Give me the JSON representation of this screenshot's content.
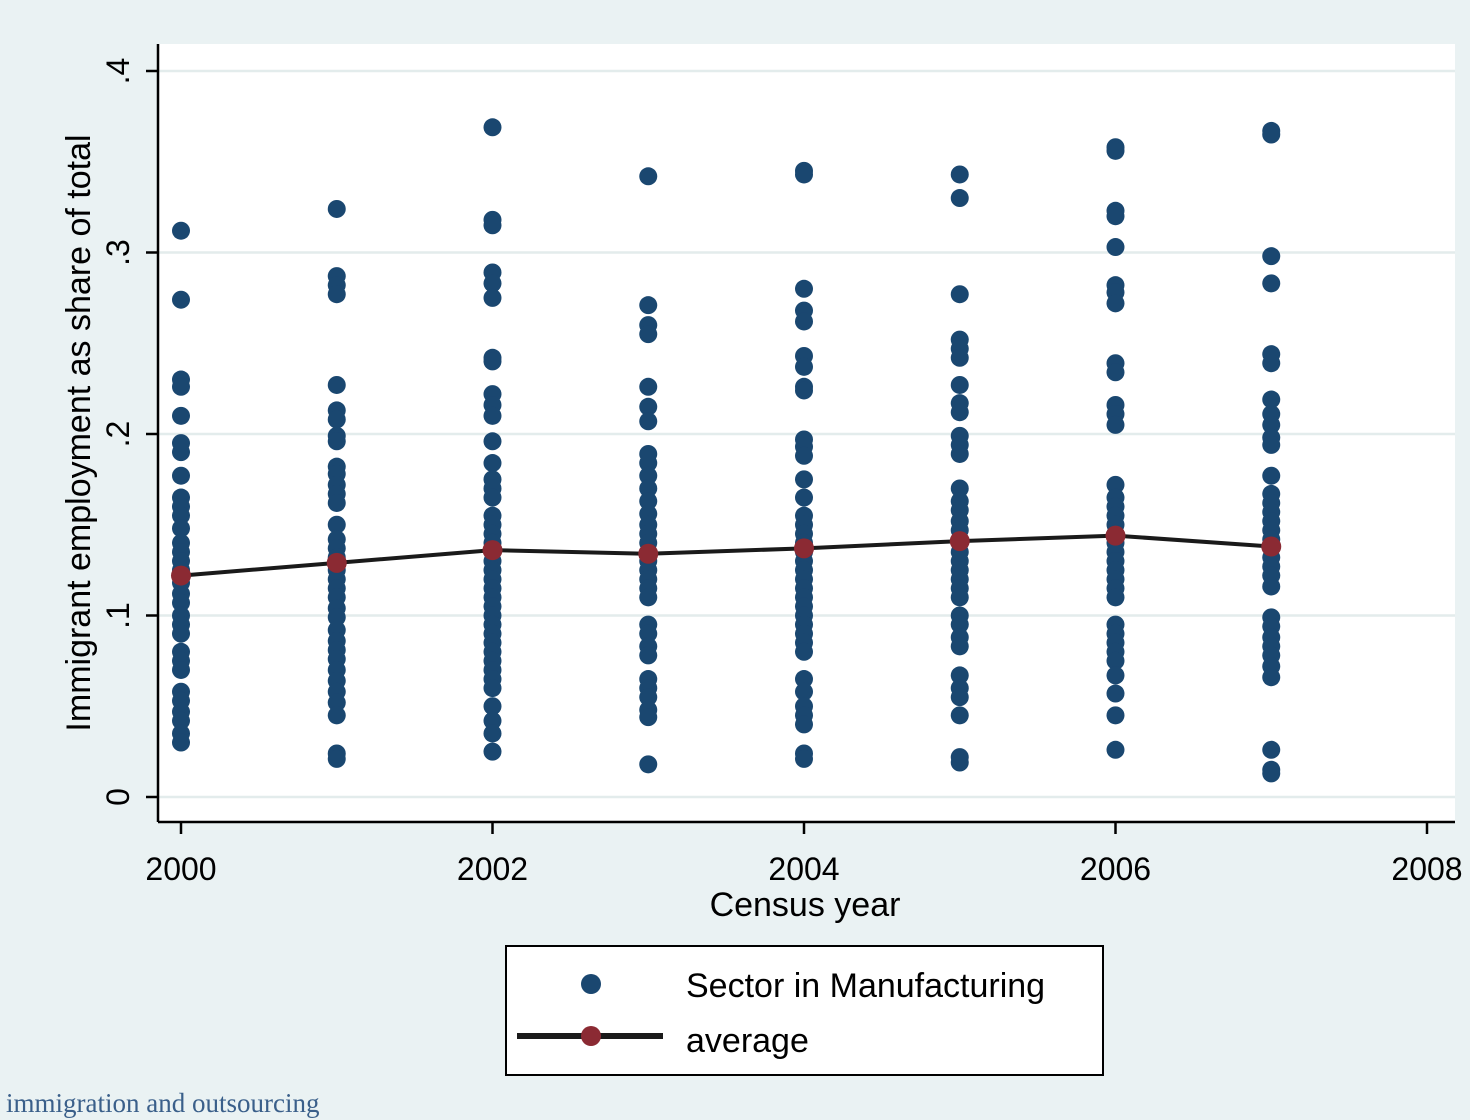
{
  "footer_text": "immigration and outsourcing",
  "colors": {
    "background": "#eaf2f3",
    "plot_background": "#ffffff",
    "grid": "#e3ecec",
    "scatter": "#1a4770",
    "average_marker": "#8b2a33",
    "average_line": "#1a1a1a"
  },
  "chart_data": {
    "type": "scatter",
    "title": "",
    "xlabel": "Census year",
    "ylabel": "Immigrant employment as share of total",
    "xlim": [
      2000,
      2008
    ],
    "ylim": [
      0,
      0.4
    ],
    "x_ticks": [
      2000,
      2002,
      2004,
      2006,
      2008
    ],
    "x_tick_labels": [
      "2000",
      "2002",
      "2004",
      "2006",
      "2008"
    ],
    "y_ticks": [
      0,
      0.1,
      0.2,
      0.3,
      0.4
    ],
    "y_tick_labels": [
      "0",
      ".1",
      ".2",
      ".3",
      ".4"
    ],
    "grid": true,
    "legend": {
      "placement": "bottom-center",
      "entries": [
        "Sector in Manufacturing",
        "average"
      ]
    },
    "series": [
      {
        "name": "Sector in Manufacturing",
        "type": "scatter",
        "points": [
          [
            2000,
            0.312
          ],
          [
            2000,
            0.274
          ],
          [
            2000,
            0.23
          ],
          [
            2000,
            0.226
          ],
          [
            2000,
            0.21
          ],
          [
            2000,
            0.195
          ],
          [
            2000,
            0.19
          ],
          [
            2000,
            0.177
          ],
          [
            2000,
            0.165
          ],
          [
            2000,
            0.16
          ],
          [
            2000,
            0.155
          ],
          [
            2000,
            0.148
          ],
          [
            2000,
            0.14
          ],
          [
            2000,
            0.135
          ],
          [
            2000,
            0.13
          ],
          [
            2000,
            0.125
          ],
          [
            2000,
            0.118
          ],
          [
            2000,
            0.112
          ],
          [
            2000,
            0.107
          ],
          [
            2000,
            0.1
          ],
          [
            2000,
            0.095
          ],
          [
            2000,
            0.09
          ],
          [
            2000,
            0.08
          ],
          [
            2000,
            0.075
          ],
          [
            2000,
            0.07
          ],
          [
            2000,
            0.058
          ],
          [
            2000,
            0.053
          ],
          [
            2000,
            0.047
          ],
          [
            2000,
            0.042
          ],
          [
            2000,
            0.035
          ],
          [
            2000,
            0.03
          ],
          [
            2001,
            0.324
          ],
          [
            2001,
            0.287
          ],
          [
            2001,
            0.282
          ],
          [
            2001,
            0.277
          ],
          [
            2001,
            0.227
          ],
          [
            2001,
            0.213
          ],
          [
            2001,
            0.208
          ],
          [
            2001,
            0.199
          ],
          [
            2001,
            0.196
          ],
          [
            2001,
            0.182
          ],
          [
            2001,
            0.178
          ],
          [
            2001,
            0.172
          ],
          [
            2001,
            0.167
          ],
          [
            2001,
            0.162
          ],
          [
            2001,
            0.15
          ],
          [
            2001,
            0.142
          ],
          [
            2001,
            0.137
          ],
          [
            2001,
            0.132
          ],
          [
            2001,
            0.125
          ],
          [
            2001,
            0.12
          ],
          [
            2001,
            0.115
          ],
          [
            2001,
            0.11
          ],
          [
            2001,
            0.104
          ],
          [
            2001,
            0.099
          ],
          [
            2001,
            0.092
          ],
          [
            2001,
            0.086
          ],
          [
            2001,
            0.081
          ],
          [
            2001,
            0.076
          ],
          [
            2001,
            0.07
          ],
          [
            2001,
            0.064
          ],
          [
            2001,
            0.058
          ],
          [
            2001,
            0.052
          ],
          [
            2001,
            0.045
          ],
          [
            2001,
            0.024
          ],
          [
            2001,
            0.021
          ],
          [
            2002,
            0.369
          ],
          [
            2002,
            0.318
          ],
          [
            2002,
            0.315
          ],
          [
            2002,
            0.289
          ],
          [
            2002,
            0.283
          ],
          [
            2002,
            0.275
          ],
          [
            2002,
            0.242
          ],
          [
            2002,
            0.24
          ],
          [
            2002,
            0.222
          ],
          [
            2002,
            0.216
          ],
          [
            2002,
            0.21
          ],
          [
            2002,
            0.196
          ],
          [
            2002,
            0.184
          ],
          [
            2002,
            0.175
          ],
          [
            2002,
            0.17
          ],
          [
            2002,
            0.165
          ],
          [
            2002,
            0.155
          ],
          [
            2002,
            0.15
          ],
          [
            2002,
            0.145
          ],
          [
            2002,
            0.14
          ],
          [
            2002,
            0.135
          ],
          [
            2002,
            0.13
          ],
          [
            2002,
            0.125
          ],
          [
            2002,
            0.12
          ],
          [
            2002,
            0.115
          ],
          [
            2002,
            0.11
          ],
          [
            2002,
            0.105
          ],
          [
            2002,
            0.1
          ],
          [
            2002,
            0.095
          ],
          [
            2002,
            0.09
          ],
          [
            2002,
            0.085
          ],
          [
            2002,
            0.08
          ],
          [
            2002,
            0.075
          ],
          [
            2002,
            0.07
          ],
          [
            2002,
            0.065
          ],
          [
            2002,
            0.06
          ],
          [
            2002,
            0.05
          ],
          [
            2002,
            0.042
          ],
          [
            2002,
            0.035
          ],
          [
            2002,
            0.025
          ],
          [
            2003,
            0.342
          ],
          [
            2003,
            0.271
          ],
          [
            2003,
            0.26
          ],
          [
            2003,
            0.255
          ],
          [
            2003,
            0.226
          ],
          [
            2003,
            0.215
          ],
          [
            2003,
            0.207
          ],
          [
            2003,
            0.189
          ],
          [
            2003,
            0.184
          ],
          [
            2003,
            0.177
          ],
          [
            2003,
            0.17
          ],
          [
            2003,
            0.163
          ],
          [
            2003,
            0.156
          ],
          [
            2003,
            0.15
          ],
          [
            2003,
            0.145
          ],
          [
            2003,
            0.14
          ],
          [
            2003,
            0.135
          ],
          [
            2003,
            0.13
          ],
          [
            2003,
            0.125
          ],
          [
            2003,
            0.12
          ],
          [
            2003,
            0.115
          ],
          [
            2003,
            0.11
          ],
          [
            2003,
            0.095
          ],
          [
            2003,
            0.09
          ],
          [
            2003,
            0.083
          ],
          [
            2003,
            0.078
          ],
          [
            2003,
            0.065
          ],
          [
            2003,
            0.06
          ],
          [
            2003,
            0.055
          ],
          [
            2003,
            0.048
          ],
          [
            2003,
            0.044
          ],
          [
            2003,
            0.018
          ],
          [
            2004,
            0.345
          ],
          [
            2004,
            0.343
          ],
          [
            2004,
            0.28
          ],
          [
            2004,
            0.268
          ],
          [
            2004,
            0.262
          ],
          [
            2004,
            0.243
          ],
          [
            2004,
            0.237
          ],
          [
            2004,
            0.226
          ],
          [
            2004,
            0.224
          ],
          [
            2004,
            0.197
          ],
          [
            2004,
            0.193
          ],
          [
            2004,
            0.188
          ],
          [
            2004,
            0.175
          ],
          [
            2004,
            0.165
          ],
          [
            2004,
            0.155
          ],
          [
            2004,
            0.15
          ],
          [
            2004,
            0.145
          ],
          [
            2004,
            0.14
          ],
          [
            2004,
            0.135
          ],
          [
            2004,
            0.13
          ],
          [
            2004,
            0.125
          ],
          [
            2004,
            0.12
          ],
          [
            2004,
            0.115
          ],
          [
            2004,
            0.11
          ],
          [
            2004,
            0.105
          ],
          [
            2004,
            0.1
          ],
          [
            2004,
            0.095
          ],
          [
            2004,
            0.09
          ],
          [
            2004,
            0.085
          ],
          [
            2004,
            0.08
          ],
          [
            2004,
            0.065
          ],
          [
            2004,
            0.058
          ],
          [
            2004,
            0.05
          ],
          [
            2004,
            0.045
          ],
          [
            2004,
            0.04
          ],
          [
            2004,
            0.024
          ],
          [
            2004,
            0.021
          ],
          [
            2005,
            0.343
          ],
          [
            2005,
            0.33
          ],
          [
            2005,
            0.277
          ],
          [
            2005,
            0.252
          ],
          [
            2005,
            0.247
          ],
          [
            2005,
            0.242
          ],
          [
            2005,
            0.227
          ],
          [
            2005,
            0.217
          ],
          [
            2005,
            0.212
          ],
          [
            2005,
            0.199
          ],
          [
            2005,
            0.194
          ],
          [
            2005,
            0.189
          ],
          [
            2005,
            0.17
          ],
          [
            2005,
            0.163
          ],
          [
            2005,
            0.158
          ],
          [
            2005,
            0.152
          ],
          [
            2005,
            0.147
          ],
          [
            2005,
            0.14
          ],
          [
            2005,
            0.135
          ],
          [
            2005,
            0.13
          ],
          [
            2005,
            0.125
          ],
          [
            2005,
            0.12
          ],
          [
            2005,
            0.115
          ],
          [
            2005,
            0.11
          ],
          [
            2005,
            0.1
          ],
          [
            2005,
            0.095
          ],
          [
            2005,
            0.088
          ],
          [
            2005,
            0.083
          ],
          [
            2005,
            0.067
          ],
          [
            2005,
            0.06
          ],
          [
            2005,
            0.055
          ],
          [
            2005,
            0.045
          ],
          [
            2005,
            0.022
          ],
          [
            2005,
            0.019
          ],
          [
            2006,
            0.358
          ],
          [
            2006,
            0.356
          ],
          [
            2006,
            0.323
          ],
          [
            2006,
            0.32
          ],
          [
            2006,
            0.303
          ],
          [
            2006,
            0.282
          ],
          [
            2006,
            0.278
          ],
          [
            2006,
            0.272
          ],
          [
            2006,
            0.239
          ],
          [
            2006,
            0.234
          ],
          [
            2006,
            0.216
          ],
          [
            2006,
            0.211
          ],
          [
            2006,
            0.205
          ],
          [
            2006,
            0.172
          ],
          [
            2006,
            0.165
          ],
          [
            2006,
            0.16
          ],
          [
            2006,
            0.155
          ],
          [
            2006,
            0.15
          ],
          [
            2006,
            0.145
          ],
          [
            2006,
            0.14
          ],
          [
            2006,
            0.135
          ],
          [
            2006,
            0.13
          ],
          [
            2006,
            0.125
          ],
          [
            2006,
            0.12
          ],
          [
            2006,
            0.115
          ],
          [
            2006,
            0.11
          ],
          [
            2006,
            0.095
          ],
          [
            2006,
            0.09
          ],
          [
            2006,
            0.085
          ],
          [
            2006,
            0.08
          ],
          [
            2006,
            0.075
          ],
          [
            2006,
            0.067
          ],
          [
            2006,
            0.057
          ],
          [
            2006,
            0.045
          ],
          [
            2006,
            0.026
          ],
          [
            2007,
            0.367
          ],
          [
            2007,
            0.365
          ],
          [
            2007,
            0.298
          ],
          [
            2007,
            0.283
          ],
          [
            2007,
            0.244
          ],
          [
            2007,
            0.239
          ],
          [
            2007,
            0.219
          ],
          [
            2007,
            0.211
          ],
          [
            2007,
            0.205
          ],
          [
            2007,
            0.198
          ],
          [
            2007,
            0.194
          ],
          [
            2007,
            0.177
          ],
          [
            2007,
            0.167
          ],
          [
            2007,
            0.162
          ],
          [
            2007,
            0.157
          ],
          [
            2007,
            0.152
          ],
          [
            2007,
            0.147
          ],
          [
            2007,
            0.142
          ],
          [
            2007,
            0.137
          ],
          [
            2007,
            0.132
          ],
          [
            2007,
            0.127
          ],
          [
            2007,
            0.122
          ],
          [
            2007,
            0.116
          ],
          [
            2007,
            0.099
          ],
          [
            2007,
            0.094
          ],
          [
            2007,
            0.088
          ],
          [
            2007,
            0.083
          ],
          [
            2007,
            0.078
          ],
          [
            2007,
            0.072
          ],
          [
            2007,
            0.066
          ],
          [
            2007,
            0.026
          ],
          [
            2007,
            0.015
          ],
          [
            2007,
            0.013
          ]
        ]
      },
      {
        "name": "average",
        "type": "line",
        "x": [
          2000,
          2001,
          2002,
          2003,
          2004,
          2005,
          2006,
          2007
        ],
        "y": [
          0.122,
          0.129,
          0.136,
          0.134,
          0.137,
          0.141,
          0.144,
          0.138
        ]
      }
    ]
  }
}
